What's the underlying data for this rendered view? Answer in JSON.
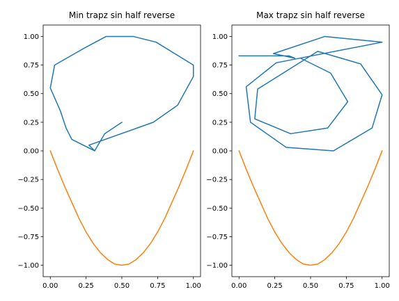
{
  "chart_data": [
    {
      "type": "line",
      "title": "Min trapz sin half reverse",
      "xlabel": "",
      "ylabel": "",
      "xlim": [
        -0.05,
        1.05
      ],
      "ylim": [
        -1.1,
        1.1
      ],
      "xticks": [
        0.0,
        0.25,
        0.5,
        0.75,
        1.0
      ],
      "xtick_labels": [
        "0.00",
        "0.25",
        "0.50",
        "0.75",
        "1.00"
      ],
      "yticks": [
        -1.0,
        -0.75,
        -0.5,
        -0.25,
        0.0,
        0.25,
        0.5,
        0.75,
        1.0
      ],
      "ytick_labels": [
        "−1.00",
        "−0.75",
        "−0.50",
        "−0.25",
        "0.00",
        "0.25",
        "0.50",
        "0.75",
        "1.00"
      ],
      "grid": false,
      "series": [
        {
          "color": "#1f77b4",
          "points": [
            [
              0.5,
              0.25
            ],
            [
              0.38,
              0.15
            ],
            [
              0.31,
              0.0
            ],
            [
              0.27,
              0.05
            ],
            [
              0.72,
              0.25
            ],
            [
              0.89,
              0.4
            ],
            [
              1.0,
              0.65
            ],
            [
              1.0,
              0.75
            ],
            [
              0.74,
              0.95
            ],
            [
              0.58,
              1.0
            ],
            [
              0.39,
              1.0
            ],
            [
              0.24,
              0.9
            ],
            [
              0.03,
              0.75
            ],
            [
              0.0,
              0.55
            ],
            [
              0.07,
              0.35
            ],
            [
              0.11,
              0.2
            ],
            [
              0.15,
              0.1
            ],
            [
              0.31,
              0.0
            ]
          ]
        },
        {
          "color": "#ff7f0e",
          "points": [
            [
              0.0,
              0.0
            ],
            [
              0.05,
              -0.16
            ],
            [
              0.1,
              -0.31
            ],
            [
              0.15,
              -0.45
            ],
            [
              0.2,
              -0.59
            ],
            [
              0.25,
              -0.71
            ],
            [
              0.3,
              -0.81
            ],
            [
              0.35,
              -0.89
            ],
            [
              0.4,
              -0.95
            ],
            [
              0.45,
              -0.99
            ],
            [
              0.5,
              -1.0
            ],
            [
              0.55,
              -0.99
            ],
            [
              0.6,
              -0.95
            ],
            [
              0.65,
              -0.89
            ],
            [
              0.7,
              -0.81
            ],
            [
              0.75,
              -0.71
            ],
            [
              0.8,
              -0.59
            ],
            [
              0.85,
              -0.45
            ],
            [
              0.9,
              -0.31
            ],
            [
              0.95,
              -0.16
            ],
            [
              1.0,
              0.0
            ]
          ]
        }
      ]
    },
    {
      "type": "line",
      "title": "Max trapz sin half reverse",
      "xlabel": "",
      "ylabel": "",
      "xlim": [
        -0.05,
        1.05
      ],
      "ylim": [
        -1.1,
        1.1
      ],
      "xticks": [
        0.0,
        0.25,
        0.5,
        0.75,
        1.0
      ],
      "xtick_labels": [
        "0.00",
        "0.25",
        "0.50",
        "0.75",
        "1.00"
      ],
      "yticks": [
        -1.0,
        -0.75,
        -0.5,
        -0.25,
        0.0,
        0.25,
        0.5,
        0.75,
        1.0
      ],
      "ytick_labels": [
        "−1.00",
        "−0.75",
        "−0.50",
        "−0.25",
        "0.00",
        "0.25",
        "0.50",
        "0.75",
        "1.00"
      ],
      "grid": false,
      "series": [
        {
          "color": "#1f77b4",
          "points": [
            [
              0.0,
              0.83
            ],
            [
              0.35,
              0.83
            ],
            [
              0.39,
              0.81
            ],
            [
              0.24,
              0.85
            ],
            [
              0.6,
              1.0
            ],
            [
              1.0,
              0.95
            ],
            [
              0.26,
              0.77
            ],
            [
              0.05,
              0.56
            ],
            [
              0.08,
              0.25
            ],
            [
              0.33,
              0.03
            ],
            [
              0.66,
              0.0
            ],
            [
              0.93,
              0.2
            ],
            [
              1.0,
              0.49
            ],
            [
              0.85,
              0.76
            ],
            [
              0.55,
              0.87
            ],
            [
              0.13,
              0.54
            ],
            [
              0.11,
              0.28
            ],
            [
              0.36,
              0.15
            ],
            [
              0.62,
              0.2
            ],
            [
              0.76,
              0.43
            ],
            [
              0.64,
              0.68
            ],
            [
              0.43,
              0.81
            ]
          ]
        },
        {
          "color": "#ff7f0e",
          "points": [
            [
              0.0,
              0.0
            ],
            [
              0.05,
              -0.16
            ],
            [
              0.1,
              -0.31
            ],
            [
              0.15,
              -0.45
            ],
            [
              0.2,
              -0.59
            ],
            [
              0.25,
              -0.71
            ],
            [
              0.3,
              -0.81
            ],
            [
              0.35,
              -0.89
            ],
            [
              0.4,
              -0.95
            ],
            [
              0.45,
              -0.99
            ],
            [
              0.5,
              -1.0
            ],
            [
              0.55,
              -0.99
            ],
            [
              0.6,
              -0.95
            ],
            [
              0.65,
              -0.89
            ],
            [
              0.7,
              -0.81
            ],
            [
              0.75,
              -0.71
            ],
            [
              0.8,
              -0.59
            ],
            [
              0.85,
              -0.45
            ],
            [
              0.9,
              -0.31
            ],
            [
              0.95,
              -0.16
            ],
            [
              1.0,
              0.0
            ]
          ]
        }
      ]
    }
  ]
}
